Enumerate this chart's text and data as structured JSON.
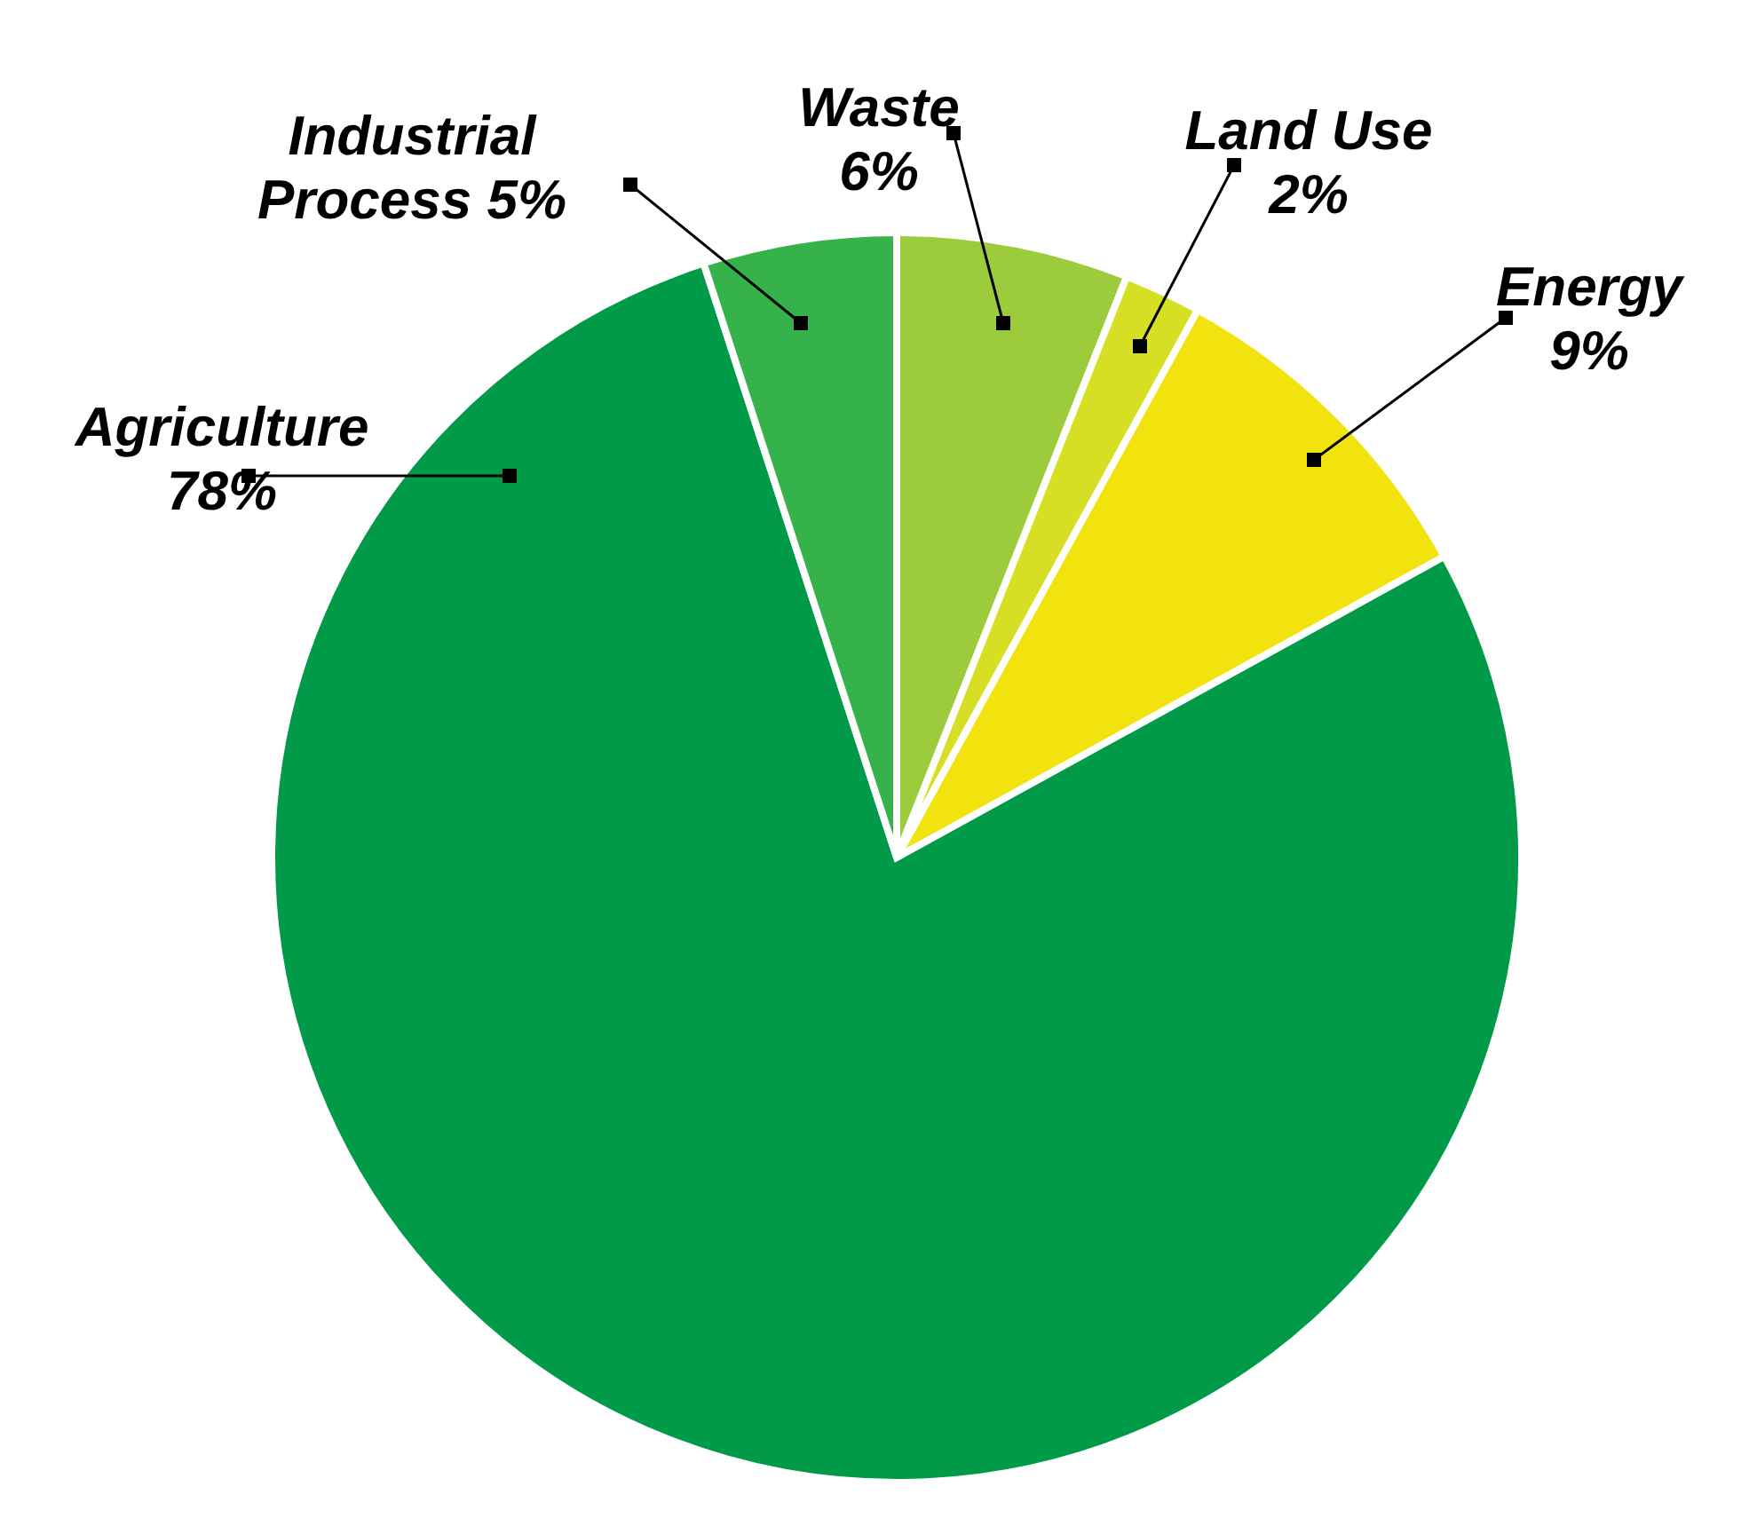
{
  "chart_data": {
    "type": "pie",
    "categories": [
      "Waste",
      "Land Use",
      "Energy",
      "Agriculture",
      "Industrial Process"
    ],
    "values": [
      6,
      2,
      9,
      78,
      5
    ],
    "value_labels": [
      "6%",
      "2%",
      "9%",
      "78%",
      "5%"
    ],
    "colors": [
      "#9ccb3b",
      "#d6df23",
      "#f2e30f",
      "#009a49",
      "#36b24a"
    ]
  }
}
